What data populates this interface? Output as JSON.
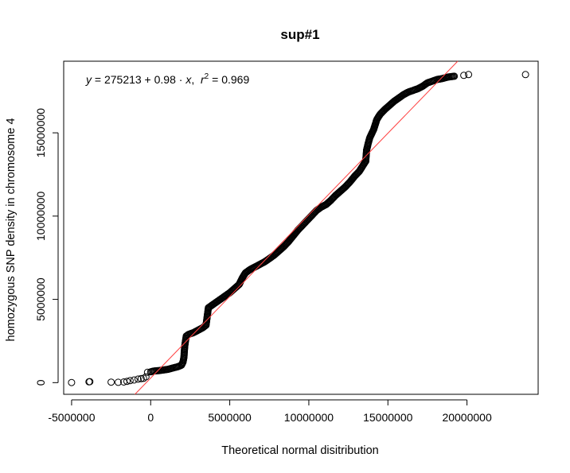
{
  "chart_data": {
    "type": "scatter",
    "title": "sup#1",
    "xlabel": "Theoretical normal disitribution",
    "ylabel": "homozygous SNP density in chromosome 4",
    "xlim": [
      -5500000,
      24500000
    ],
    "ylim": [
      -700000,
      19300000
    ],
    "x_ticks": [
      -5000000,
      0,
      5000000,
      10000000,
      15000000,
      20000000
    ],
    "x_tick_labels": [
      "-5000000",
      "0",
      "5000000",
      "10000000",
      "15000000",
      "20000000"
    ],
    "y_ticks": [
      0,
      5000000,
      10000000,
      15000000
    ],
    "y_tick_labels": [
      "0",
      "5000000",
      "10000000",
      "15000000"
    ],
    "grid": false,
    "point_color": "#000000",
    "fit_color": "#ff4040",
    "fit": {
      "intercept": 275213,
      "slope": 0.98,
      "r2": 0.969,
      "equation": {
        "y": "y",
        "eq1": " = 275213 + 0.98 · ",
        "x": "x",
        "sep": ",  ",
        "r": "r",
        "sup": "2",
        "eq2": " = 0.969"
      }
    },
    "points": [
      [
        -5000000,
        5000
      ],
      [
        -3900000,
        50000
      ],
      [
        -3850000,
        60000
      ],
      [
        -2500000,
        30000
      ],
      [
        -2050000,
        20000
      ],
      [
        -1700000,
        40000
      ],
      [
        -1500000,
        80000
      ],
      [
        -1300000,
        120000
      ],
      [
        -1050000,
        160000
      ],
      [
        -800000,
        210000
      ],
      [
        -600000,
        240000
      ],
      [
        -450000,
        260000
      ],
      [
        -300000,
        350000
      ],
      [
        -200000,
        620000
      ],
      [
        0,
        650000
      ],
      [
        200000,
        700000
      ],
      [
        500000,
        720000
      ],
      [
        800000,
        760000
      ],
      [
        1100000,
        800000
      ],
      [
        1400000,
        880000
      ],
      [
        1700000,
        950000
      ],
      [
        1950000,
        1050000
      ],
      [
        2050000,
        1250000
      ],
      [
        2100000,
        1500000
      ],
      [
        2150000,
        2150000
      ],
      [
        2200000,
        2500000
      ],
      [
        2250000,
        2800000
      ],
      [
        2400000,
        2900000
      ],
      [
        2700000,
        3000000
      ],
      [
        3000000,
        3150000
      ],
      [
        3300000,
        3300000
      ],
      [
        3500000,
        3450000
      ],
      [
        3650000,
        4500000
      ],
      [
        3800000,
        4600000
      ],
      [
        4100000,
        4800000
      ],
      [
        4400000,
        5000000
      ],
      [
        4700000,
        5200000
      ],
      [
        5000000,
        5400000
      ],
      [
        5300000,
        5650000
      ],
      [
        5600000,
        5900000
      ],
      [
        5800000,
        6300000
      ],
      [
        6000000,
        6600000
      ],
      [
        6300000,
        6800000
      ],
      [
        6600000,
        6950000
      ],
      [
        6900000,
        7100000
      ],
      [
        7200000,
        7250000
      ],
      [
        7500000,
        7450000
      ],
      [
        7800000,
        7650000
      ],
      [
        8100000,
        7900000
      ],
      [
        8400000,
        8150000
      ],
      [
        8700000,
        8450000
      ],
      [
        9000000,
        8800000
      ],
      [
        9300000,
        9150000
      ],
      [
        9600000,
        9450000
      ],
      [
        9900000,
        9750000
      ],
      [
        10200000,
        10050000
      ],
      [
        10500000,
        10350000
      ],
      [
        10800000,
        10550000
      ],
      [
        11100000,
        10700000
      ],
      [
        11400000,
        10950000
      ],
      [
        11700000,
        11250000
      ],
      [
        12000000,
        11500000
      ],
      [
        12300000,
        11750000
      ],
      [
        12600000,
        12050000
      ],
      [
        12900000,
        12400000
      ],
      [
        13200000,
        12700000
      ],
      [
        13400000,
        13000000
      ],
      [
        13600000,
        13300000
      ],
      [
        13650000,
        13950000
      ],
      [
        13750000,
        14350000
      ],
      [
        13850000,
        14700000
      ],
      [
        13950000,
        14900000
      ],
      [
        14100000,
        15200000
      ],
      [
        14300000,
        15800000
      ],
      [
        14500000,
        16100000
      ],
      [
        14800000,
        16400000
      ],
      [
        15100000,
        16650000
      ],
      [
        15400000,
        16900000
      ],
      [
        15700000,
        17100000
      ],
      [
        16000000,
        17300000
      ],
      [
        16300000,
        17450000
      ],
      [
        16600000,
        17550000
      ],
      [
        16900000,
        17650000
      ],
      [
        17200000,
        17800000
      ],
      [
        17500000,
        18000000
      ],
      [
        17800000,
        18100000
      ],
      [
        18100000,
        18200000
      ],
      [
        18400000,
        18250000
      ],
      [
        18800000,
        18350000
      ],
      [
        19200000,
        18400000
      ],
      [
        19800000,
        18450000
      ],
      [
        20100000,
        18500000
      ],
      [
        23700000,
        18500000
      ]
    ]
  }
}
